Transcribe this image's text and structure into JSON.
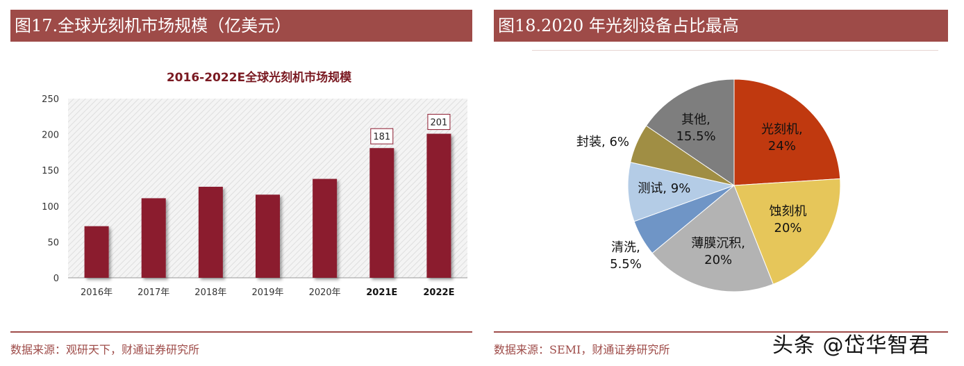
{
  "left_panel": {
    "header": "图17.全球光刻机市场规模（亿美元）",
    "source": "数据来源：观研天下，财通证券研究所"
  },
  "right_panel": {
    "header": "图18.2020 年光刻设备占比最高",
    "source": "数据来源：SEMI，财通证券研究所"
  },
  "watermark": "头条 @岱华智君",
  "chart_data": [
    {
      "type": "bar",
      "title": "2016-2022E全球光刻机市场规模",
      "categories": [
        "2016年",
        "2017年",
        "2018年",
        "2019年",
        "2020年",
        "2021E",
        "2022E"
      ],
      "values": [
        72,
        111,
        127,
        116,
        138,
        181,
        201
      ],
      "data_labels": [
        "",
        "",
        "",
        "",
        "",
        "181",
        "201"
      ],
      "bold_categories": [
        "2021E",
        "2022E"
      ],
      "ylim": [
        0,
        250
      ],
      "yticks": [
        0,
        50,
        100,
        150,
        200,
        250
      ],
      "grid": false,
      "plot_background": "hatched light gray",
      "bar_color": "#8b1a2e",
      "title_color": "#7a1a22"
    },
    {
      "type": "pie",
      "start_angle_deg": 0,
      "direction": "clockwise",
      "slices": [
        {
          "label": "光刻机,",
          "pct_text": "24%",
          "value": 24,
          "color": "#c0390f"
        },
        {
          "label": "蚀刻机",
          "pct_text": "20%",
          "value": 20,
          "color": "#e6c65a"
        },
        {
          "label": "薄膜沉积,",
          "pct_text": "20%",
          "value": 20,
          "color": "#b3b3b3"
        },
        {
          "label": "清洗,",
          "pct_text": "5.5%",
          "value": 5.5,
          "color": "#6f95c6"
        },
        {
          "label": "测试, 9%",
          "pct_text": "",
          "value": 9,
          "color": "#b4cce6"
        },
        {
          "label": "封装, 6%",
          "pct_text": "",
          "value": 6,
          "color": "#a08e44"
        },
        {
          "label": "其他,",
          "pct_text": "15.5%",
          "value": 15.5,
          "color": "#7e7e7e"
        }
      ]
    }
  ]
}
